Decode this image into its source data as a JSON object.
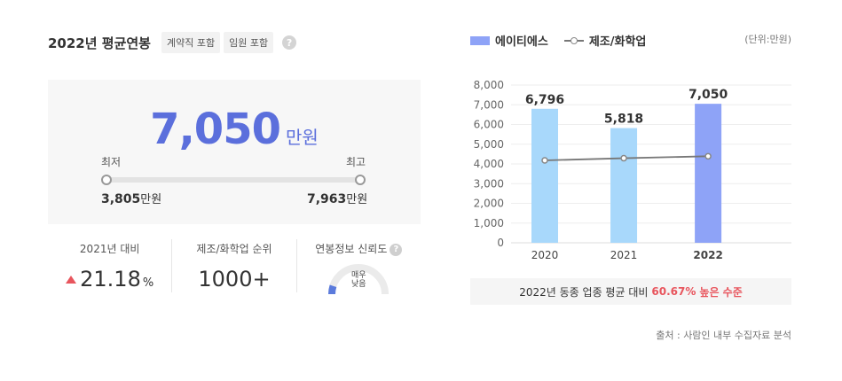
{
  "left": {
    "title": "2022년 평균연봉",
    "tags": [
      "계약직 포함",
      "임원 포함"
    ],
    "help_glyph": "?",
    "salary": {
      "value": "7,050",
      "unit": "만원"
    },
    "range": {
      "min_label": "최저",
      "max_label": "최고",
      "min_value": "3,805",
      "max_value": "7,963",
      "unit": "만원"
    },
    "stats": [
      {
        "label": "2021년 대비",
        "value": "21.18",
        "unit": "%"
      },
      {
        "label": "제조/화학업 순위",
        "value": "1000+"
      },
      {
        "label": "연봉정보 신뢰도",
        "gauge_text_1": "매우",
        "gauge_text_2": "낮음",
        "gauge_level": 0.1
      }
    ]
  },
  "right": {
    "legend": {
      "company": "에이티에스",
      "industry": "제조/화학업"
    },
    "unit": "(단위:만원)",
    "compare": {
      "prefix": "2022년 동종 업종 평균 대비",
      "pct": "60.67%",
      "suffix": "높은 수준"
    },
    "source": "출처 : 사람인 내부 수집자료 분석"
  },
  "chart_data": {
    "type": "bar",
    "categories": [
      "2020",
      "2021",
      "2022"
    ],
    "ylim": [
      0,
      8000
    ],
    "yticks": [
      0,
      1000,
      2000,
      3000,
      4000,
      5000,
      6000,
      7000,
      8000
    ],
    "ytick_labels": [
      "0",
      "1,000",
      "2,000",
      "3,000",
      "4,000",
      "5,000",
      "6,000",
      "7,000",
      "8,000"
    ],
    "series": [
      {
        "name": "에이티에스",
        "values": [
          6796,
          5818,
          7050
        ],
        "labels": [
          "6,796",
          "5,818",
          "7,050"
        ]
      },
      {
        "name": "제조/화학업",
        "values": [
          4180,
          4290,
          4390
        ],
        "type": "line"
      }
    ],
    "colors": {
      "bar": "#a8d8fb",
      "bar_highlight": "#8ea3f7",
      "line": "#777777"
    }
  }
}
